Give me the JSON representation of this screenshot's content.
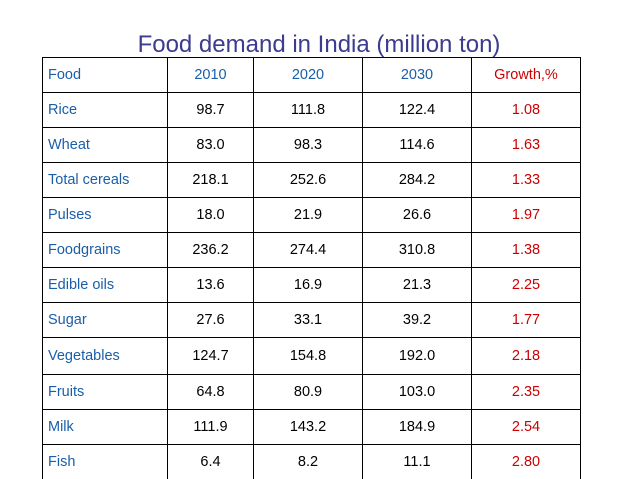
{
  "title": "Food demand in India (million ton)",
  "header": {
    "food": "Food",
    "y2010": "2010",
    "y2020": "2020",
    "y2030": "2030",
    "growth": "Growth,%"
  },
  "rows": [
    {
      "food": "Rice",
      "y2010": "98.7",
      "y2020": "111.8",
      "y2030": "122.4",
      "growth": "1.08"
    },
    {
      "food": "Wheat",
      "y2010": "83.0",
      "y2020": "98.3",
      "y2030": "114.6",
      "growth": "1.63"
    },
    {
      "food": "Total cereals",
      "y2010": "218.1",
      "y2020": "252.6",
      "y2030": "284.2",
      "growth": "1.33"
    },
    {
      "food": "Pulses",
      "y2010": "18.0",
      "y2020": "21.9",
      "y2030": "26.6",
      "growth": "1.97"
    },
    {
      "food": "Foodgrains",
      "y2010": "236.2",
      "y2020": "274.4",
      "y2030": "310.8",
      "growth": "1.38"
    },
    {
      "food": "Edible oils",
      "y2010": "13.6",
      "y2020": "16.9",
      "y2030": "21.3",
      "growth": "2.25"
    },
    {
      "food": "Sugar",
      "y2010": "27.6",
      "y2020": "33.1",
      "y2030": "39.2",
      "growth": "1.77"
    },
    {
      "food": "Vegetables",
      "y2010": "124.7",
      "y2020": "154.8",
      "y2030": "192.0",
      "growth": "2.18"
    },
    {
      "food": "Fruits",
      "y2010": "64.8",
      "y2020": "80.9",
      "y2030": "103.0",
      "growth": "2.35"
    },
    {
      "food": "Milk",
      "y2010": "111.9",
      "y2020": "143.2",
      "y2030": "184.9",
      "growth": "2.54"
    },
    {
      "food": "Fish",
      "y2010": "6.4",
      "y2020": "8.2",
      "y2030": "11.1",
      "growth": "2.80"
    }
  ],
  "colors": {
    "title": "#3b3b8f",
    "label": "#1a5ea8",
    "growth": "#cc0000",
    "value": "#000000"
  }
}
